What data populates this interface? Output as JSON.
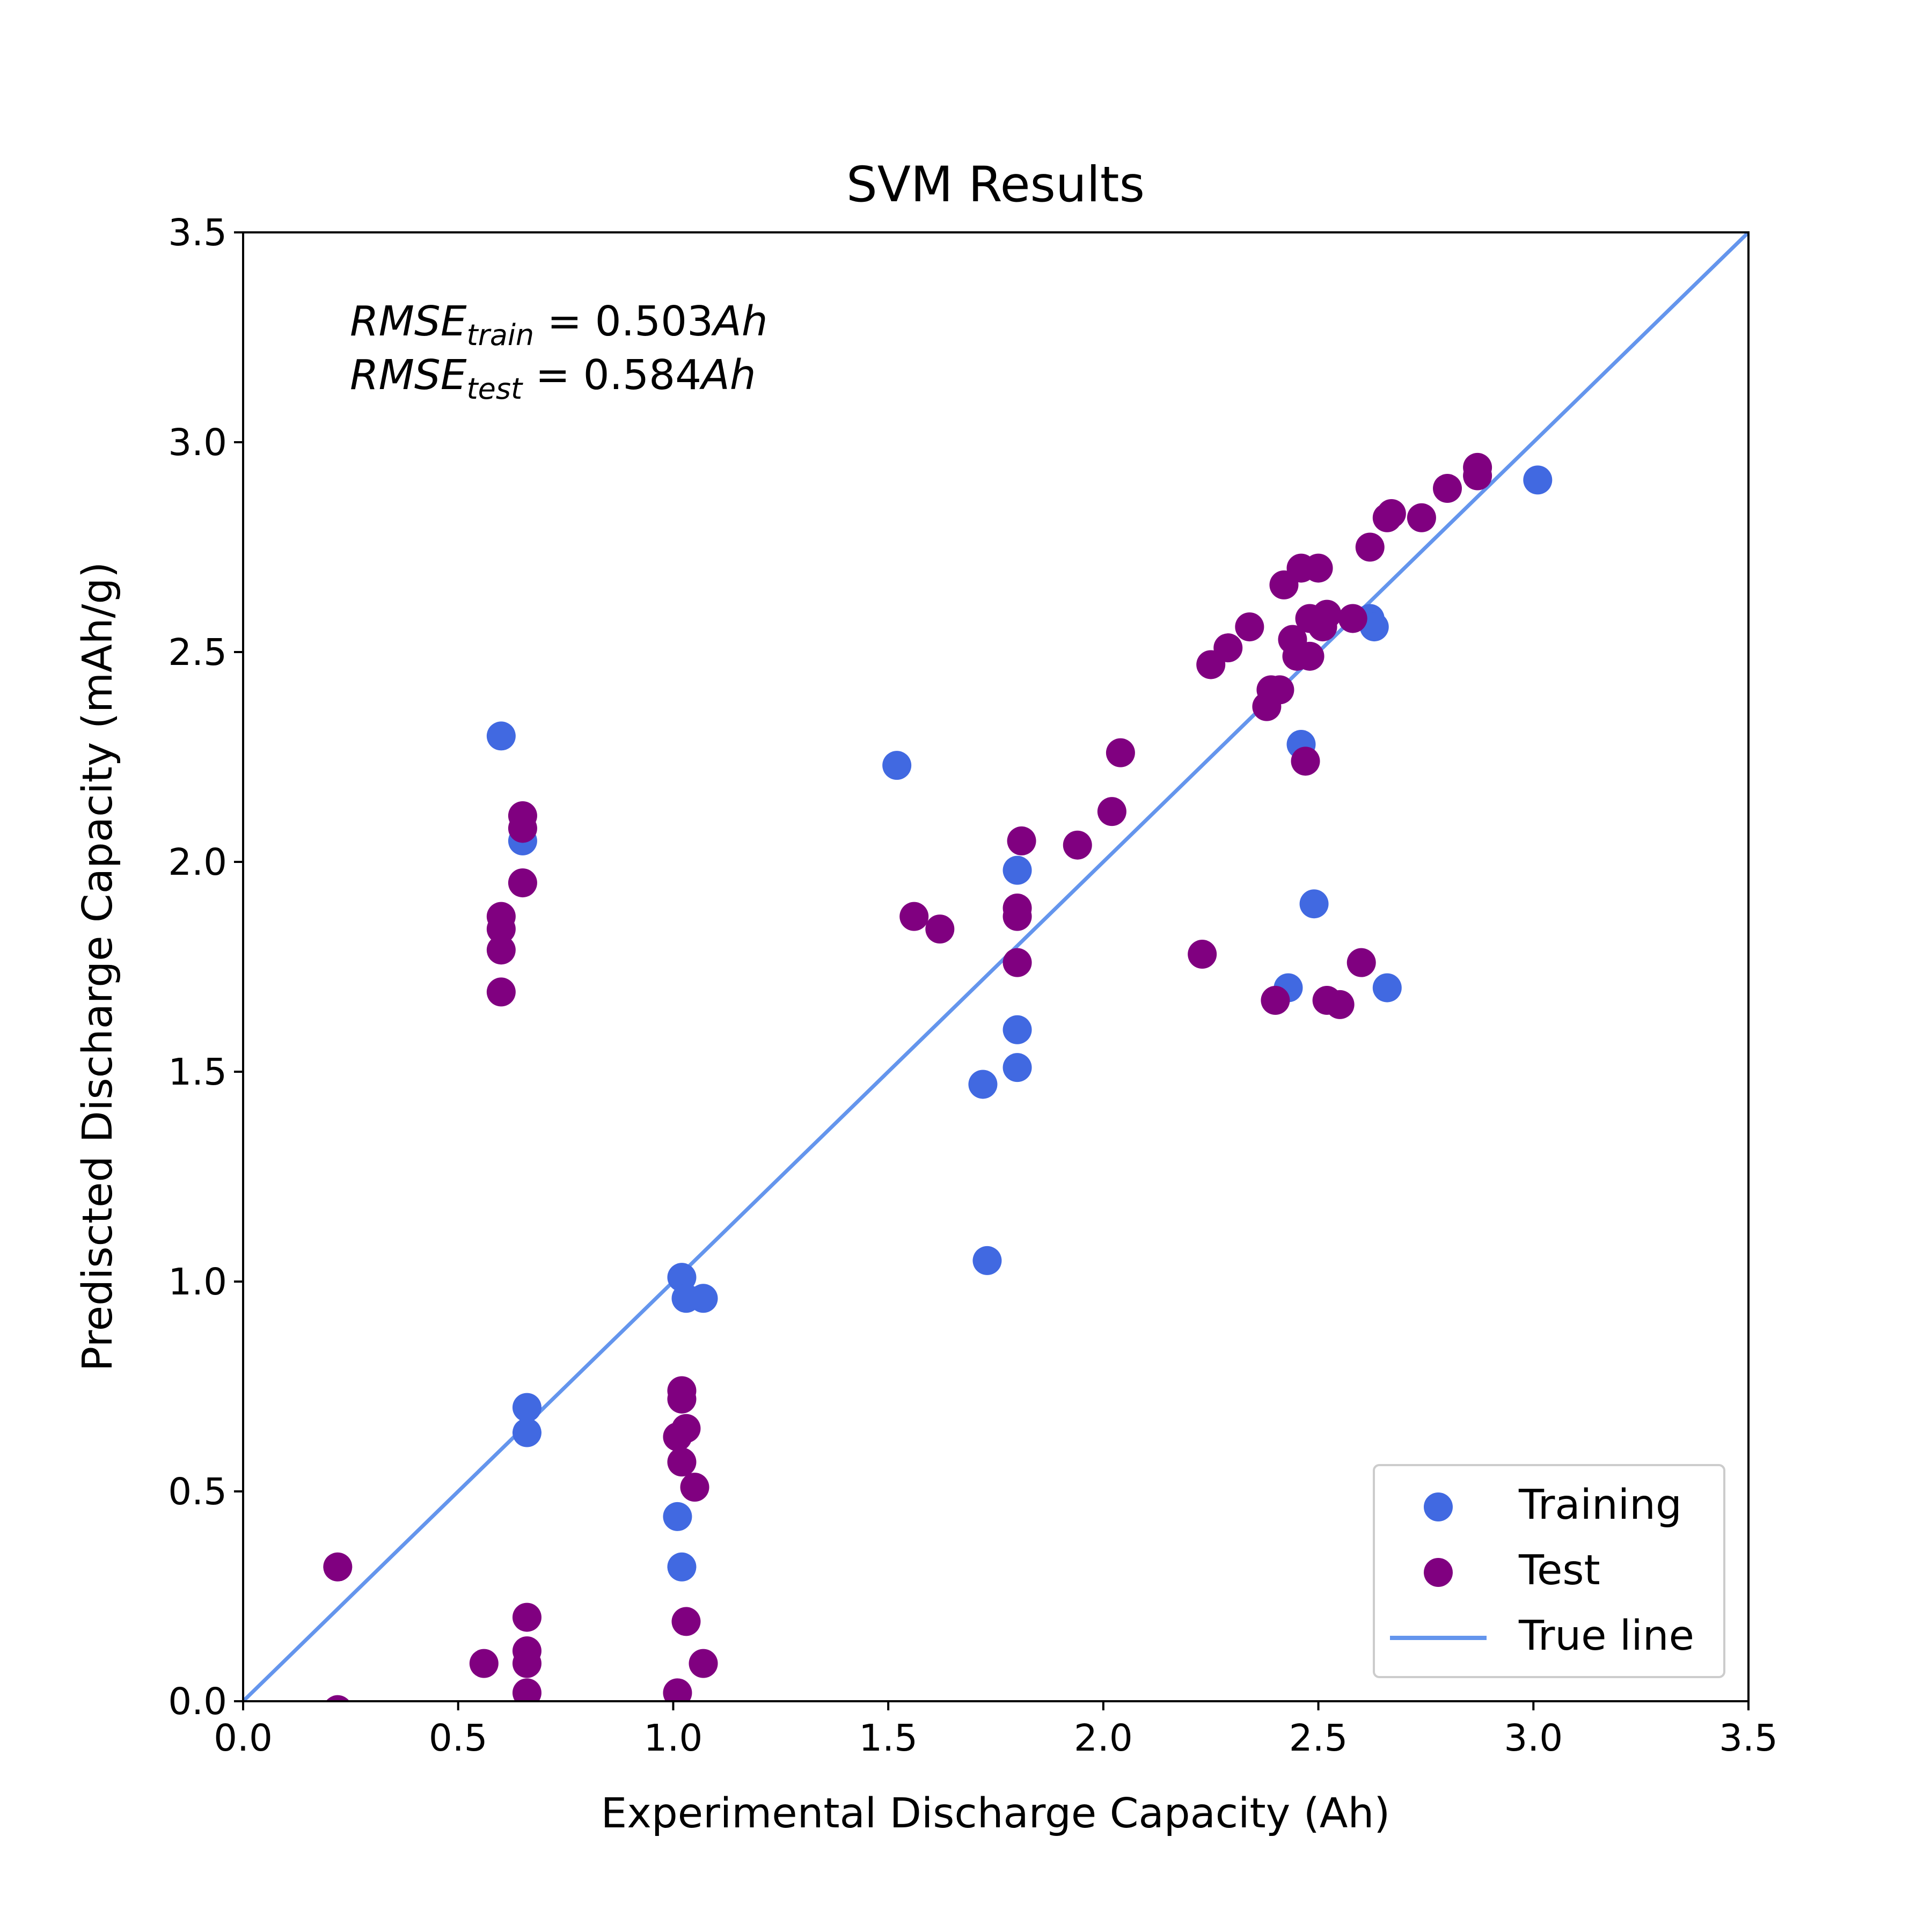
{
  "chart_data": {
    "type": "scatter",
    "title": "SVM Results",
    "xlabel": "Experimental Discharge Capacity (Ah)",
    "ylabel": "Prediscted Discharge Capacity (mAh/g)",
    "xlim": [
      0.0,
      3.5
    ],
    "ylim": [
      0.0,
      3.5
    ],
    "xticks": [
      "0.0",
      "0.5",
      "1.0",
      "1.5",
      "2.0",
      "2.5",
      "3.0",
      "3.5"
    ],
    "yticks": [
      "0.0",
      "0.5",
      "1.0",
      "1.5",
      "2.0",
      "2.5",
      "3.0",
      "3.5"
    ],
    "grid": false,
    "legend_position": "lower-right",
    "annotations": {
      "train": {
        "prefix": "RMSE",
        "sub": "train",
        "value": " = 0.503",
        "unit": "Ah"
      },
      "test": {
        "prefix": "RMSE",
        "sub": "test",
        "value": " = 0.584",
        "unit": "Ah"
      }
    },
    "series": [
      {
        "name": "Training",
        "kind": "scatter",
        "color": "#4169e1",
        "points": [
          [
            0.6,
            2.3
          ],
          [
            0.65,
            2.05
          ],
          [
            0.66,
            0.7
          ],
          [
            0.66,
            0.64
          ],
          [
            1.01,
            0.44
          ],
          [
            1.02,
            0.32
          ],
          [
            1.02,
            1.01
          ],
          [
            1.03,
            0.96
          ],
          [
            1.07,
            0.96
          ],
          [
            1.52,
            2.23
          ],
          [
            1.72,
            1.47
          ],
          [
            1.73,
            1.05
          ],
          [
            1.8,
            1.98
          ],
          [
            1.8,
            1.6
          ],
          [
            1.8,
            1.51
          ],
          [
            2.43,
            1.7
          ],
          [
            2.46,
            2.28
          ],
          [
            2.49,
            1.9
          ],
          [
            2.62,
            2.58
          ],
          [
            2.63,
            2.56
          ],
          [
            2.66,
            1.7
          ],
          [
            3.01,
            2.91
          ]
        ]
      },
      {
        "name": "Test",
        "kind": "scatter",
        "color": "#800080",
        "points": [
          [
            0.22,
            0.32
          ],
          [
            0.22,
            -0.02
          ],
          [
            0.56,
            0.09
          ],
          [
            0.6,
            1.87
          ],
          [
            0.6,
            1.84
          ],
          [
            0.6,
            1.79
          ],
          [
            0.6,
            1.69
          ],
          [
            0.65,
            2.11
          ],
          [
            0.65,
            2.08
          ],
          [
            0.65,
            1.95
          ],
          [
            0.66,
            0.2
          ],
          [
            0.66,
            0.12
          ],
          [
            0.66,
            0.09
          ],
          [
            0.66,
            0.02
          ],
          [
            1.01,
            0.63
          ],
          [
            1.01,
            0.02
          ],
          [
            1.02,
            0.74
          ],
          [
            1.02,
            0.72
          ],
          [
            1.02,
            0.57
          ],
          [
            1.03,
            0.65
          ],
          [
            1.03,
            0.19
          ],
          [
            1.05,
            0.51
          ],
          [
            1.07,
            0.09
          ],
          [
            1.56,
            1.87
          ],
          [
            1.62,
            1.84
          ],
          [
            1.8,
            1.89
          ],
          [
            1.8,
            1.87
          ],
          [
            1.8,
            1.76
          ],
          [
            1.81,
            2.05
          ],
          [
            1.94,
            2.04
          ],
          [
            2.02,
            2.12
          ],
          [
            2.04,
            2.26
          ],
          [
            2.23,
            1.78
          ],
          [
            2.25,
            2.47
          ],
          [
            2.29,
            2.51
          ],
          [
            2.34,
            2.56
          ],
          [
            2.38,
            2.37
          ],
          [
            2.39,
            2.41
          ],
          [
            2.4,
            1.67
          ],
          [
            2.41,
            2.41
          ],
          [
            2.42,
            2.66
          ],
          [
            2.44,
            2.53
          ],
          [
            2.45,
            2.49
          ],
          [
            2.46,
            2.7
          ],
          [
            2.47,
            2.24
          ],
          [
            2.48,
            2.58
          ],
          [
            2.48,
            2.49
          ],
          [
            2.5,
            2.7
          ],
          [
            2.51,
            2.56
          ],
          [
            2.52,
            2.59
          ],
          [
            2.52,
            1.67
          ],
          [
            2.55,
            1.66
          ],
          [
            2.58,
            2.58
          ],
          [
            2.6,
            1.76
          ],
          [
            2.62,
            2.75
          ],
          [
            2.66,
            2.82
          ],
          [
            2.67,
            2.83
          ],
          [
            2.74,
            2.82
          ],
          [
            2.8,
            2.89
          ],
          [
            2.87,
            2.92
          ],
          [
            2.87,
            2.94
          ]
        ]
      },
      {
        "name": "True line",
        "kind": "line",
        "color": "#6495ed",
        "points": [
          [
            0.0,
            0.0
          ],
          [
            3.5,
            3.5
          ]
        ]
      }
    ]
  }
}
